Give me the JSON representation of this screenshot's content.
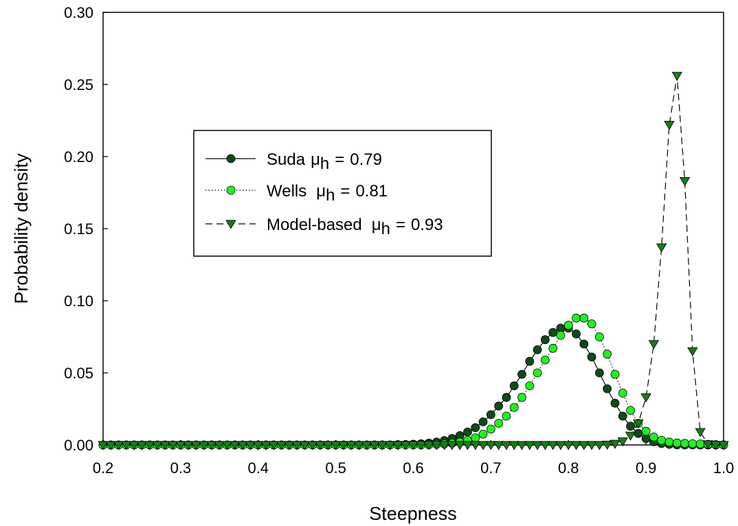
{
  "chart_data": {
    "type": "line",
    "title": "",
    "xlabel": "Steepness",
    "ylabel": "Probability density",
    "xlim": [
      0.2,
      1.0
    ],
    "ylim": [
      0.0,
      0.3
    ],
    "xticks": [
      "0.2",
      "0.3",
      "0.4",
      "0.5",
      "0.6",
      "0.7",
      "0.8",
      "0.9",
      "1.0"
    ],
    "yticks": [
      "0.00",
      "0.05",
      "0.10",
      "0.15",
      "0.20",
      "0.25",
      "0.30"
    ],
    "grid": false,
    "legend_position": "center-left",
    "x": [
      0.2,
      0.21,
      0.22,
      0.23,
      0.24,
      0.25,
      0.26,
      0.27,
      0.28,
      0.29,
      0.3,
      0.31,
      0.32,
      0.33,
      0.34,
      0.35,
      0.36,
      0.37,
      0.38,
      0.39,
      0.4,
      0.41,
      0.42,
      0.43,
      0.44,
      0.45,
      0.46,
      0.47,
      0.48,
      0.49,
      0.5,
      0.51,
      0.52,
      0.53,
      0.54,
      0.55,
      0.56,
      0.57,
      0.58,
      0.59,
      0.6,
      0.61,
      0.62,
      0.63,
      0.64,
      0.65,
      0.66,
      0.67,
      0.68,
      0.69,
      0.7,
      0.71,
      0.72,
      0.73,
      0.74,
      0.75,
      0.76,
      0.77,
      0.78,
      0.79,
      0.8,
      0.81,
      0.82,
      0.83,
      0.84,
      0.85,
      0.86,
      0.87,
      0.88,
      0.89,
      0.9,
      0.91,
      0.92,
      0.93,
      0.94,
      0.95,
      0.96,
      0.97,
      0.98,
      0.99,
      1.0
    ],
    "series": [
      {
        "name": "Suda",
        "mu_value": "0.79",
        "line_style": "solid",
        "marker": "circle",
        "marker_fill": "#0f4a19",
        "values": [
          0,
          0,
          0,
          0,
          0,
          0,
          0,
          0,
          0,
          0,
          0,
          0,
          0,
          0,
          0,
          0,
          0,
          0,
          0,
          0,
          0,
          0,
          0,
          0,
          0,
          0,
          0,
          0,
          0,
          0,
          0,
          0,
          0,
          0,
          0,
          0,
          0,
          0,
          0.0002,
          0.0003,
          0.0005,
          0.0008,
          0.0013,
          0.002,
          0.003,
          0.0045,
          0.0065,
          0.009,
          0.012,
          0.016,
          0.021,
          0.027,
          0.033,
          0.041,
          0.049,
          0.058,
          0.066,
          0.073,
          0.078,
          0.081,
          0.081,
          0.077,
          0.07,
          0.061,
          0.05,
          0.039,
          0.029,
          0.02,
          0.013,
          0.008,
          0.0045,
          0.0022,
          0.001,
          0.0004,
          0.0001,
          0,
          0,
          0,
          0,
          0,
          0
        ]
      },
      {
        "name": "Wells",
        "mu_value": "0.81",
        "line_style": "dotted",
        "marker": "circle",
        "marker_fill": "#22ee22",
        "values": [
          0,
          0,
          0,
          0,
          0,
          0,
          0,
          0,
          0,
          0,
          0,
          0,
          0,
          0,
          0,
          0,
          0,
          0,
          0,
          0,
          0,
          0,
          0,
          0,
          0,
          0,
          0,
          0,
          0,
          0,
          0,
          0,
          0,
          0,
          0,
          0,
          0,
          0,
          0,
          0,
          0,
          0,
          0.0002,
          0.0004,
          0.0007,
          0.0012,
          0.002,
          0.0032,
          0.005,
          0.0075,
          0.011,
          0.015,
          0.02,
          0.026,
          0.033,
          0.041,
          0.05,
          0.059,
          0.067,
          0.076,
          0.083,
          0.088,
          0.088,
          0.084,
          0.075,
          0.063,
          0.049,
          0.036,
          0.024,
          0.015,
          0.0095,
          0.0055,
          0.0032,
          0.002,
          0.0014,
          0.0011,
          0.0009,
          0.0007,
          0.0004,
          0.0002,
          0.0001
        ]
      },
      {
        "name": "Model-based",
        "mu_value": "0.93",
        "line_style": "dashed",
        "marker": "triangle-down",
        "marker_fill": "#1a7a1a",
        "values": [
          0,
          0,
          0,
          0,
          0,
          0,
          0,
          0,
          0,
          0,
          0,
          0,
          0,
          0,
          0,
          0,
          0,
          0,
          0,
          0,
          0,
          0,
          0,
          0,
          0,
          0,
          0,
          0,
          0,
          0,
          0,
          0,
          0,
          0,
          0,
          0,
          0,
          0,
          0,
          0,
          0,
          0,
          0,
          0,
          0,
          0,
          0,
          0,
          0,
          0,
          0,
          0,
          0,
          0,
          0,
          0,
          0,
          0,
          0,
          0,
          0,
          0,
          0,
          0,
          0,
          0.0002,
          0.0008,
          0.0025,
          0.0065,
          0.015,
          0.033,
          0.07,
          0.137,
          0.222,
          0.256,
          0.183,
          0.065,
          0.009,
          0.0005,
          0,
          0
        ]
      }
    ]
  },
  "legend": {
    "mu_symbol": "μ",
    "mu_subscript": "h",
    "equals": "="
  }
}
